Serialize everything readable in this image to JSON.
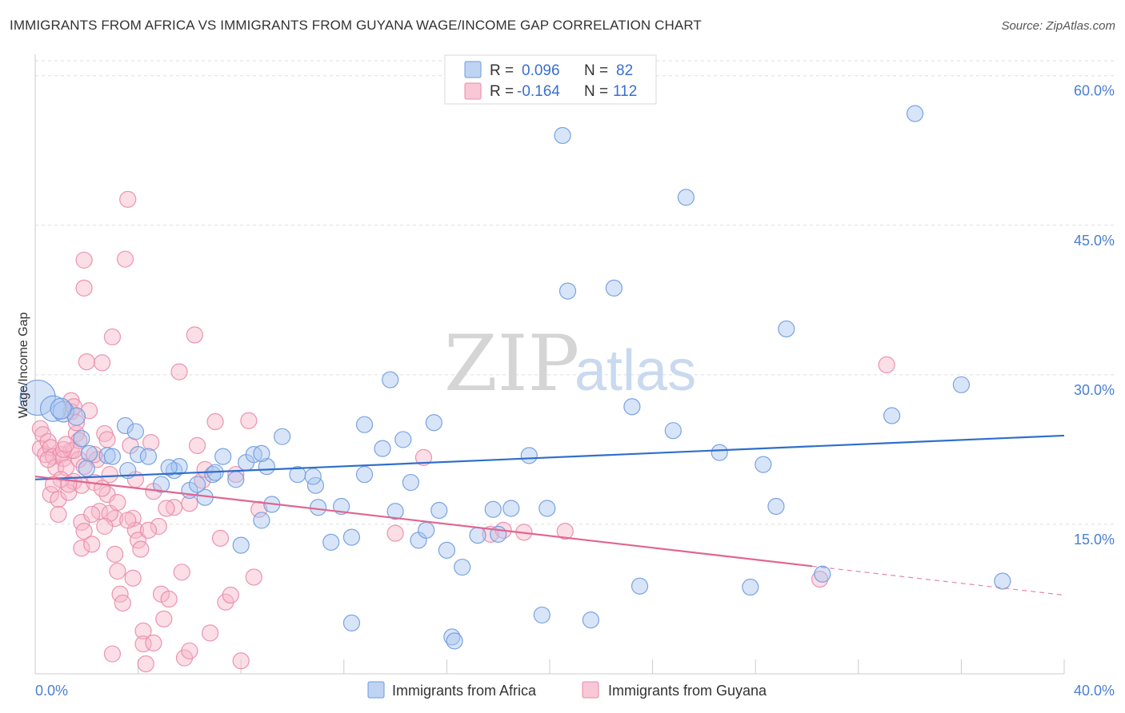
{
  "title": "IMMIGRANTS FROM AFRICA VS IMMIGRANTS FROM GUYANA WAGE/INCOME GAP CORRELATION CHART",
  "source": "Source: ZipAtlas.com",
  "watermark": {
    "zip": "ZIP",
    "atlas": "atlas"
  },
  "colors": {
    "africa_fill": "#a9c6ef",
    "africa_stroke": "#6b9ae0",
    "africa_line": "#2f6fcb",
    "guyana_fill": "#f6b5c8",
    "guyana_stroke": "#e98aa8",
    "guyana_line": "#e0668f",
    "tick_color": "#4a7fd4",
    "grid": "#dddddd"
  },
  "legend": {
    "africa": {
      "r_label": "R =",
      "r_value": "0.096",
      "n_label": "N =",
      "n_value": "82"
    },
    "guyana": {
      "r_label": "R =",
      "r_value": "-0.164",
      "n_label": "N =",
      "n_value": "112"
    }
  },
  "chart_data": {
    "type": "scatter",
    "title": "IMMIGRANTS FROM AFRICA VS IMMIGRANTS FROM GUYANA WAGE/INCOME GAP CORRELATION CHART",
    "xlabel": "",
    "ylabel": "Wage/Income Gap",
    "xlim": [
      0,
      40
    ],
    "ylim": [
      0,
      61.5
    ],
    "x_tick_labels": [
      "0.0%",
      "40.0%"
    ],
    "y_ticks": [
      15,
      30,
      45,
      60
    ],
    "y_tick_labels": [
      "15.0%",
      "30.0%",
      "45.0%",
      "60.0%"
    ],
    "legend_position": "top-center",
    "series": [
      {
        "name": "Immigrants from Africa",
        "trend": {
          "x0": 0,
          "y0": 19.5,
          "x1": 40,
          "y1": 23.9
        },
        "points": [
          [
            0.1,
            27.7
          ],
          [
            0.7,
            26.6
          ],
          [
            1.1,
            26.3
          ],
          [
            1.6,
            25.8
          ],
          [
            1.8,
            23.6
          ],
          [
            2.1,
            22.1
          ],
          [
            2.8,
            21.9
          ],
          [
            3.5,
            24.9
          ],
          [
            3.9,
            24.3
          ],
          [
            4.0,
            22.0
          ],
          [
            3.6,
            20.4
          ],
          [
            4.4,
            21.8
          ],
          [
            5.4,
            20.4
          ],
          [
            4.9,
            19.0
          ],
          [
            5.6,
            20.8
          ],
          [
            6.0,
            18.4
          ],
          [
            6.6,
            17.7
          ],
          [
            6.9,
            20.0
          ],
          [
            7.3,
            21.8
          ],
          [
            7.8,
            19.5
          ],
          [
            8.2,
            21.2
          ],
          [
            8.5,
            22.0
          ],
          [
            9.0,
            20.8
          ],
          [
            9.6,
            23.8
          ],
          [
            9.2,
            17.0
          ],
          [
            8.8,
            15.4
          ],
          [
            8.0,
            12.9
          ],
          [
            10.2,
            20.0
          ],
          [
            10.9,
            18.9
          ],
          [
            11.0,
            16.7
          ],
          [
            11.5,
            13.2
          ],
          [
            11.9,
            16.8
          ],
          [
            12.3,
            13.7
          ],
          [
            12.8,
            25.0
          ],
          [
            13.5,
            22.6
          ],
          [
            12.3,
            5.1
          ],
          [
            14.0,
            16.3
          ],
          [
            14.3,
            23.5
          ],
          [
            14.6,
            19.2
          ],
          [
            14.9,
            13.4
          ],
          [
            15.2,
            14.4
          ],
          [
            15.5,
            25.2
          ],
          [
            16.0,
            12.4
          ],
          [
            16.6,
            10.7
          ],
          [
            16.2,
            3.7
          ],
          [
            16.3,
            3.3
          ],
          [
            17.2,
            13.9
          ],
          [
            17.8,
            16.5
          ],
          [
            18.5,
            16.6
          ],
          [
            19.2,
            21.9
          ],
          [
            19.7,
            5.9
          ],
          [
            20.5,
            54.0
          ],
          [
            20.7,
            38.4
          ],
          [
            21.6,
            5.4
          ],
          [
            22.5,
            38.7
          ],
          [
            23.2,
            26.8
          ],
          [
            23.5,
            8.8
          ],
          [
            24.8,
            24.4
          ],
          [
            25.3,
            47.8
          ],
          [
            26.6,
            22.2
          ],
          [
            27.8,
            8.7
          ],
          [
            28.3,
            21.0
          ],
          [
            28.8,
            16.8
          ],
          [
            29.2,
            34.6
          ],
          [
            30.6,
            10.0
          ],
          [
            33.3,
            25.9
          ],
          [
            34.2,
            56.2
          ],
          [
            36.0,
            29.0
          ],
          [
            37.6,
            9.3
          ],
          [
            2.0,
            20.6
          ],
          [
            1.0,
            26.6
          ],
          [
            3.0,
            21.8
          ],
          [
            5.2,
            20.7
          ],
          [
            6.3,
            19.0
          ],
          [
            7.0,
            20.2
          ],
          [
            8.8,
            22.1
          ],
          [
            10.8,
            19.8
          ],
          [
            12.8,
            20.0
          ],
          [
            13.8,
            29.5
          ],
          [
            15.7,
            16.4
          ],
          [
            18.0,
            14.0
          ],
          [
            19.9,
            16.6
          ]
        ],
        "sizes": [
          22,
          16,
          13,
          11,
          10,
          10,
          10,
          10,
          10,
          10,
          10,
          10,
          10,
          10,
          10,
          10,
          10,
          10,
          10,
          10,
          10,
          10,
          10,
          10,
          10,
          10,
          10,
          10,
          10,
          10,
          10,
          10,
          10,
          10,
          10,
          10,
          10,
          10,
          10,
          10,
          10,
          10,
          10,
          10,
          10,
          10,
          10,
          10,
          10,
          10,
          10,
          10,
          10,
          10,
          10,
          10,
          10,
          10,
          10,
          10,
          10,
          10,
          10,
          10,
          10,
          10,
          10,
          10,
          10,
          10,
          13,
          10,
          10,
          10,
          10,
          10,
          10,
          10,
          10,
          10,
          10,
          10
        ]
      },
      {
        "name": "Immigrants from Guyana",
        "trend": {
          "x0": 0,
          "y0": 19.8,
          "x1": 30.2,
          "y1": 10.8,
          "dash_to": {
            "x": 40,
            "y": 7.9
          }
        },
        "points": [
          [
            0.2,
            24.6
          ],
          [
            0.3,
            24.0
          ],
          [
            0.2,
            22.6
          ],
          [
            0.4,
            22.0
          ],
          [
            0.5,
            23.3
          ],
          [
            0.6,
            22.7
          ],
          [
            0.7,
            21.8
          ],
          [
            0.8,
            20.7
          ],
          [
            0.6,
            18.0
          ],
          [
            0.9,
            17.5
          ],
          [
            0.9,
            16.0
          ],
          [
            1.0,
            22.0
          ],
          [
            1.1,
            21.6
          ],
          [
            1.2,
            20.7
          ],
          [
            1.3,
            18.2
          ],
          [
            1.4,
            27.4
          ],
          [
            1.4,
            26.3
          ],
          [
            1.4,
            22.4
          ],
          [
            1.5,
            19.3
          ],
          [
            1.6,
            24.1
          ],
          [
            1.6,
            25.2
          ],
          [
            1.7,
            23.4
          ],
          [
            1.7,
            21.5
          ],
          [
            1.8,
            18.9
          ],
          [
            1.8,
            15.2
          ],
          [
            1.9,
            14.3
          ],
          [
            1.8,
            12.6
          ],
          [
            2.0,
            31.3
          ],
          [
            1.9,
            41.5
          ],
          [
            1.9,
            38.7
          ],
          [
            2.1,
            26.4
          ],
          [
            2.2,
            13.0
          ],
          [
            2.3,
            19.2
          ],
          [
            2.4,
            21.5
          ],
          [
            2.5,
            16.3
          ],
          [
            2.6,
            31.2
          ],
          [
            2.7,
            24.1
          ],
          [
            2.8,
            23.5
          ],
          [
            2.9,
            20.0
          ],
          [
            2.8,
            18.0
          ],
          [
            3.0,
            33.8
          ],
          [
            3.1,
            15.6
          ],
          [
            3.1,
            12.0
          ],
          [
            3.2,
            10.3
          ],
          [
            3.3,
            8.0
          ],
          [
            3.4,
            7.1
          ],
          [
            3.5,
            41.6
          ],
          [
            3.6,
            47.6
          ],
          [
            3.7,
            22.9
          ],
          [
            3.8,
            15.6
          ],
          [
            3.9,
            14.4
          ],
          [
            3.8,
            9.6
          ],
          [
            4.0,
            13.4
          ],
          [
            4.1,
            12.5
          ],
          [
            4.2,
            4.3
          ],
          [
            4.2,
            3.0
          ],
          [
            4.3,
            1.0
          ],
          [
            4.5,
            23.2
          ],
          [
            4.6,
            18.3
          ],
          [
            4.8,
            14.8
          ],
          [
            4.9,
            8.0
          ],
          [
            5.0,
            5.5
          ],
          [
            5.2,
            7.5
          ],
          [
            5.4,
            16.7
          ],
          [
            5.6,
            30.3
          ],
          [
            5.7,
            10.2
          ],
          [
            5.8,
            1.6
          ],
          [
            6.0,
            2.3
          ],
          [
            6.2,
            34.0
          ],
          [
            6.3,
            22.9
          ],
          [
            6.5,
            19.4
          ],
          [
            6.6,
            20.5
          ],
          [
            6.8,
            4.1
          ],
          [
            7.0,
            25.3
          ],
          [
            7.2,
            13.6
          ],
          [
            7.4,
            7.2
          ],
          [
            7.6,
            7.9
          ],
          [
            7.8,
            20.0
          ],
          [
            8.0,
            1.3
          ],
          [
            8.3,
            25.4
          ],
          [
            8.5,
            9.7
          ],
          [
            8.7,
            16.5
          ],
          [
            0.5,
            21.5
          ],
          [
            1.0,
            19.5
          ],
          [
            1.3,
            19.0
          ],
          [
            1.5,
            22.4
          ],
          [
            1.9,
            20.8
          ],
          [
            2.3,
            22.0
          ],
          [
            2.6,
            18.6
          ],
          [
            2.9,
            16.1
          ],
          [
            3.2,
            17.2
          ],
          [
            3.6,
            15.4
          ],
          [
            3.9,
            19.5
          ],
          [
            4.4,
            14.4
          ],
          [
            5.1,
            16.6
          ],
          [
            6.0,
            17.1
          ],
          [
            1.1,
            22.5
          ],
          [
            1.5,
            26.8
          ],
          [
            2.2,
            16.0
          ],
          [
            2.7,
            14.8
          ],
          [
            1.2,
            23.0
          ],
          [
            0.7,
            19.0
          ],
          [
            3.0,
            2.0
          ],
          [
            4.6,
            3.1
          ],
          [
            14.0,
            14.1
          ],
          [
            15.1,
            21.7
          ],
          [
            17.7,
            14.0
          ],
          [
            18.2,
            14.4
          ],
          [
            19.0,
            14.2
          ],
          [
            20.6,
            14.3
          ],
          [
            30.5,
            9.5
          ],
          [
            33.1,
            31.0
          ]
        ],
        "sizes": [
          10,
          10,
          10,
          10,
          10,
          10,
          10,
          10,
          10,
          10,
          10,
          10,
          10,
          10,
          10,
          10,
          10,
          10,
          10,
          10,
          10,
          10,
          10,
          10,
          10,
          10,
          10,
          10,
          10,
          10,
          10,
          10,
          10,
          10,
          10,
          10,
          10,
          10,
          10,
          10,
          10,
          10,
          10,
          10,
          10,
          10,
          10,
          10,
          10,
          10,
          10,
          10,
          10,
          10,
          10,
          10,
          10,
          10,
          10,
          10,
          10,
          10,
          10,
          10,
          10,
          10,
          10,
          10,
          10,
          10,
          10,
          10,
          10,
          10,
          10,
          10,
          10,
          10,
          10,
          10,
          10,
          10,
          10,
          10,
          10,
          10,
          10,
          10,
          10,
          10,
          10,
          10,
          10,
          10,
          10,
          10,
          10,
          10,
          10,
          10,
          10,
          10,
          10,
          10,
          10,
          10,
          10,
          10,
          10,
          10,
          10,
          10
        ]
      }
    ]
  }
}
